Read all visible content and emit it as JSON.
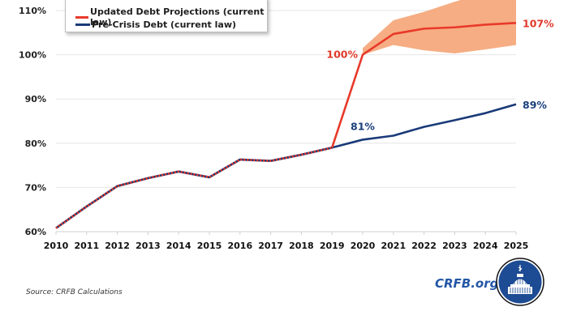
{
  "chart_data": {
    "type": "line",
    "title": "",
    "xlabel": "",
    "ylabel": "",
    "x": [
      2010,
      2011,
      2012,
      2013,
      2014,
      2015,
      2016,
      2017,
      2018,
      2019,
      2020,
      2021,
      2022,
      2023,
      2024,
      2025
    ],
    "x_tick_labels": [
      "2010",
      "2011",
      "2012",
      "2013",
      "2014",
      "2015",
      "2016",
      "2017",
      "2018",
      "2019",
      "2020",
      "2021",
      "2022",
      "2023",
      "2024",
      "2025"
    ],
    "y_tick_values": [
      60,
      70,
      80,
      90,
      100,
      110
    ],
    "y_tick_labels": [
      "60%",
      "70%",
      "80%",
      "90%",
      "100%",
      "110%"
    ],
    "ylim": [
      60,
      110
    ],
    "grid": true,
    "legend_position": "top-left",
    "series": [
      {
        "name": "Updated Debt Projections (current law)",
        "color": "#e8392a",
        "x": [
          2019,
          2020,
          2021,
          2022,
          2023,
          2024,
          2025
        ],
        "values": [
          79.0,
          100.0,
          104.7,
          105.9,
          106.2,
          106.8,
          107.2
        ]
      },
      {
        "name": "Pre-Crisis Debt (current law)",
        "color": "#1a3a78",
        "x": [
          2010,
          2011,
          2012,
          2013,
          2014,
          2015,
          2016,
          2017,
          2018,
          2019,
          2020,
          2021,
          2022,
          2023,
          2024,
          2025
        ],
        "values": [
          60.8,
          65.7,
          70.3,
          72.1,
          73.6,
          72.3,
          76.3,
          76.0,
          77.4,
          79.0,
          80.8,
          81.7,
          83.7,
          85.2,
          86.8,
          88.8
        ]
      }
    ],
    "historical_overlay": {
      "description": "Historical segment drawn as navy line with red dashes (shared by both series)",
      "x_end": 2019
    },
    "uncertainty_band": {
      "color": "#f5a97c",
      "x": [
        2020,
        2021,
        2022,
        2023,
        2024,
        2025
      ],
      "upper": [
        101.5,
        107.8,
        109.7,
        112.0,
        114.0,
        116.0
      ],
      "lower": [
        100.0,
        102.2,
        101.0,
        100.3,
        101.2,
        102.2
      ]
    },
    "annotations": [
      {
        "text": "100%",
        "x": 2020,
        "y": 100,
        "color": "#e03a2b",
        "anchor": "left-of-point"
      },
      {
        "text": "107%",
        "x": 2025,
        "y": 107.2,
        "color": "#e03a2b",
        "anchor": "right-of-point"
      },
      {
        "text": "81%",
        "x": 2020,
        "y": 80.8,
        "color": "#1a3f7a",
        "anchor": "above-point"
      },
      {
        "text": "89%",
        "x": 2025,
        "y": 88.8,
        "color": "#1a3f7a",
        "anchor": "right-of-point"
      }
    ]
  },
  "legend": {
    "items": [
      {
        "label": "Updated Debt Projections (current law)",
        "color": "#e8392a"
      },
      {
        "label": "Pre-Crisis Debt (current law)",
        "color": "#1a3a78"
      }
    ]
  },
  "footer": {
    "source": "Source: CRFB Calculations",
    "brand": "CRFB.org",
    "logo_icon": "capitol-dome-logo-icon"
  }
}
